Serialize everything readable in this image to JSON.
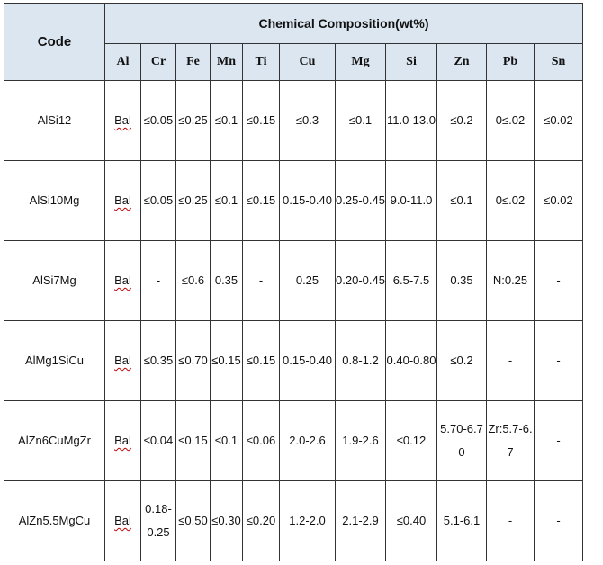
{
  "table": {
    "code_header": "Code",
    "group_header": "Chemical   Composition(wt%)",
    "elements": [
      "Al",
      "Cr",
      "Fe",
      "Mn",
      "Ti",
      "Cu",
      "Mg",
      "Si",
      "Zn",
      "Pb",
      "Sn"
    ],
    "rows": [
      {
        "code": "AlSi12",
        "cells": [
          "Bal",
          "≤0.05",
          "≤0.25",
          "≤0.1",
          "≤0.15",
          "≤0.3",
          "≤0.1",
          "11.0-13.0",
          "≤0.2",
          "0≤.02",
          "≤0.02"
        ]
      },
      {
        "code": "AlSi10Mg",
        "cells": [
          "Bal",
          "≤0.05",
          "≤0.25",
          "≤0.1",
          "≤0.15",
          "0.15-0.40",
          "0.25-0.45",
          "9.0-11.0",
          "≤0.1",
          "0≤.02",
          "≤0.02"
        ]
      },
      {
        "code": "AlSi7Mg",
        "cells": [
          "Bal",
          "-",
          "≤0.6",
          "0.35",
          "-",
          "0.25",
          "0.20-0.45",
          "6.5-7.5",
          "0.35",
          "N:0.25",
          "-"
        ]
      },
      {
        "code": "AlMg1SiCu",
        "cells": [
          "Bal",
          "≤0.35",
          "≤0.70",
          "≤0.15",
          "≤0.15",
          "0.15-0.40",
          "0.8-1.2",
          "0.40-0.80",
          "≤0.2",
          "-",
          "-"
        ]
      },
      {
        "code": "AlZn6CuMgZr",
        "cells": [
          "Bal",
          "≤0.04",
          "≤0.15",
          "≤0.1",
          "≤0.06",
          "2.0-2.6",
          "1.9-2.6",
          "≤0.12",
          "5.70-6.70",
          "Zr:5.7-6.7",
          "-"
        ]
      },
      {
        "code": "AlZn5.5MgCu",
        "cells": [
          "Bal",
          "0.18-0.25",
          "≤0.50",
          "≤0.30",
          "≤0.20",
          "1.2-2.0",
          "2.1-2.9",
          "≤0.40",
          "5.1-6.1",
          "-",
          "-"
        ]
      }
    ]
  }
}
